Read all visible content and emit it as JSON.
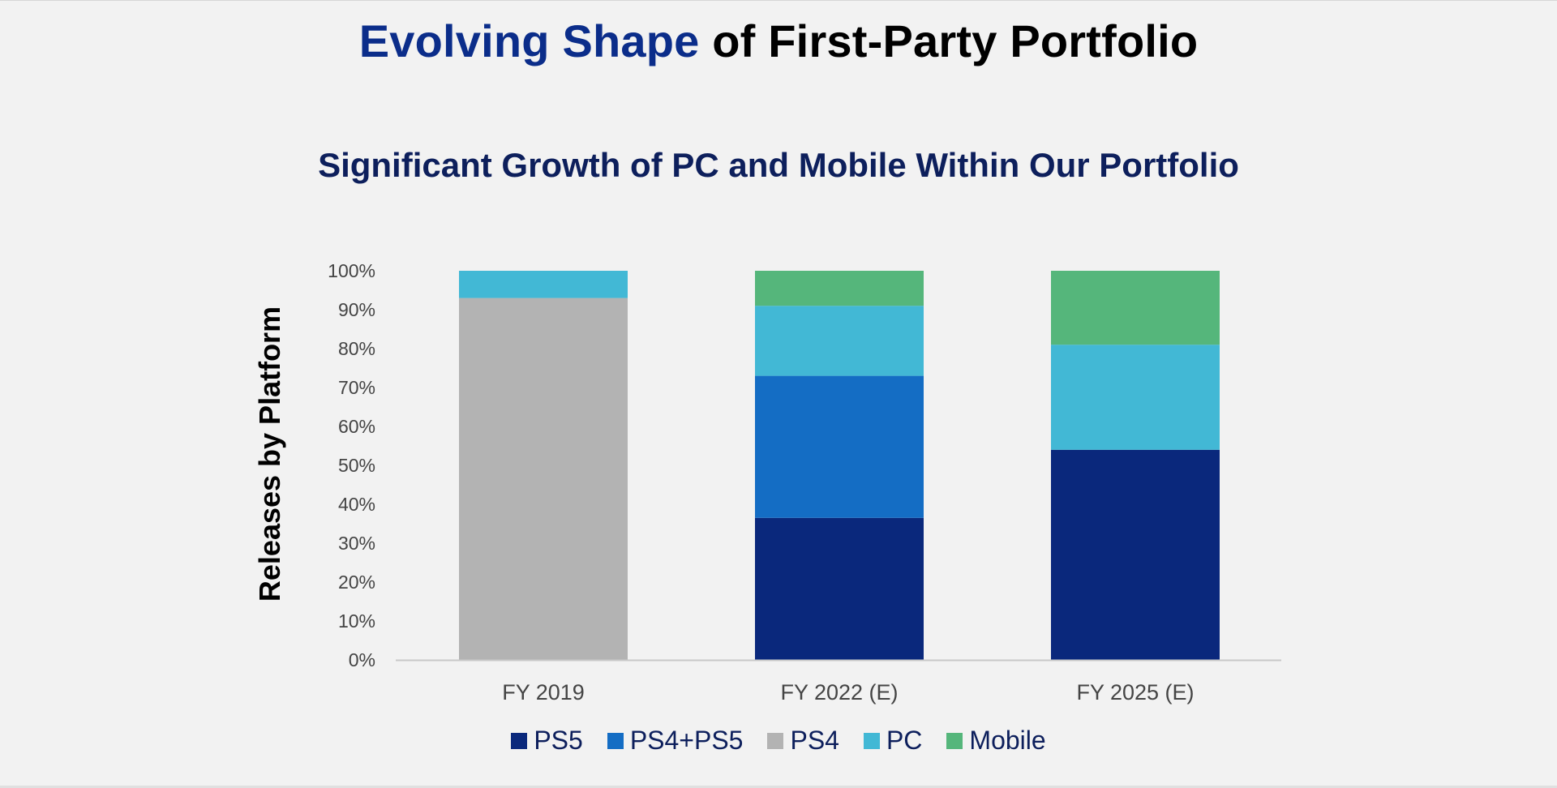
{
  "slide": {
    "title_accent": "Evolving Shape",
    "title_rest": " of First-Party Portfolio"
  },
  "chart_data": {
    "type": "bar",
    "stacked": true,
    "title": "Significant Growth of PC and Mobile Within Our Portfolio",
    "xlabel": "",
    "ylabel": "Releases by Platform",
    "categories": [
      "FY 2019",
      "FY 2022 (E)",
      "FY 2025 (E)"
    ],
    "ylim": [
      0,
      100
    ],
    "yticks": [
      "0%",
      "10%",
      "20%",
      "30%",
      "40%",
      "50%",
      "60%",
      "70%",
      "80%",
      "90%",
      "100%"
    ],
    "grid": false,
    "legend_position": "bottom",
    "series": [
      {
        "name": "PS5",
        "color": "#0a287c",
        "values": [
          0,
          36.5,
          54
        ]
      },
      {
        "name": "PS4+PS5",
        "color": "#146dc4",
        "values": [
          0,
          36.5,
          0
        ]
      },
      {
        "name": "PS4",
        "color": "#b3b3b3",
        "values": [
          93,
          0,
          0
        ]
      },
      {
        "name": "PC",
        "color": "#42b8d5",
        "values": [
          7,
          18,
          27
        ]
      },
      {
        "name": "Mobile",
        "color": "#55b67b",
        "values": [
          0,
          9,
          19
        ]
      }
    ]
  }
}
